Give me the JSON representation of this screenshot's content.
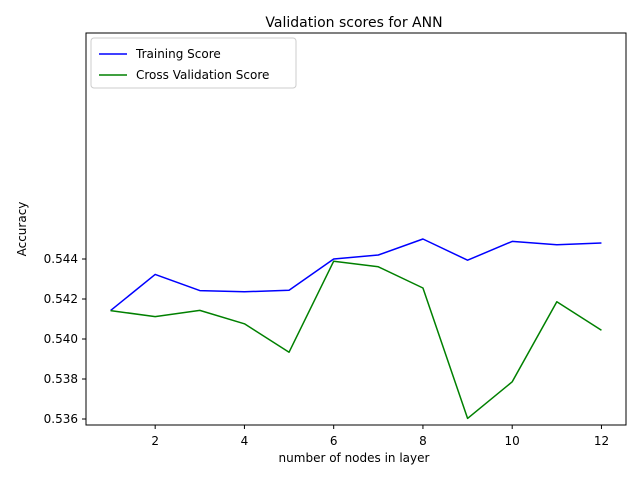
{
  "chart_data": {
    "type": "line",
    "title": "Validation scores for ANN",
    "xlabel": "number of nodes in layer",
    "ylabel": "Accuracy",
    "xlim": [
      0.45,
      12.55
    ],
    "ylim": [
      0.5357,
      0.5553
    ],
    "xticks": [
      2,
      4,
      6,
      8,
      10,
      12
    ],
    "yticks": [
      0.536,
      0.538,
      0.54,
      0.542,
      0.544
    ],
    "grid": false,
    "legend_position": "top-left",
    "x": [
      1,
      2,
      3,
      4,
      5,
      6,
      7,
      8,
      9,
      10,
      11,
      12
    ],
    "series": [
      {
        "name": "Training Score",
        "color": "#0000ff",
        "values": [
          0.54142,
          0.54323,
          0.54242,
          0.54236,
          0.54244,
          0.544,
          0.5442,
          0.545,
          0.54394,
          0.54488,
          0.54471,
          0.5448
        ]
      },
      {
        "name": "Cross Validation Score",
        "color": "#008000",
        "values": [
          0.54142,
          0.54112,
          0.54143,
          0.54076,
          0.53934,
          0.54389,
          0.54361,
          0.54255,
          0.53603,
          0.53786,
          0.54186,
          0.54044
        ]
      }
    ]
  }
}
